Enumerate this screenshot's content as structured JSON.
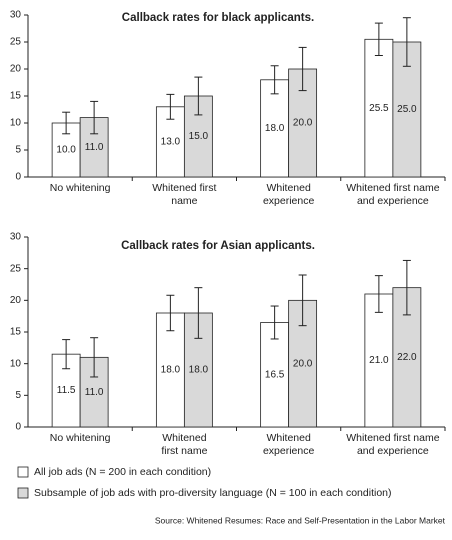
{
  "chart_data": [
    {
      "type": "bar",
      "title": "Callback rates for black applicants.",
      "categories": [
        "No whitening",
        [
          "Whitened first",
          "name"
        ],
        [
          "Whitened",
          "experience"
        ],
        [
          "Whitened first name",
          "and experience"
        ]
      ],
      "series": [
        {
          "color": "#ffffff",
          "values": [
            10,
            13,
            18,
            25.5
          ],
          "value_labels": [
            "10.0",
            "13.0",
            "18.0",
            "25.5"
          ],
          "errors": [
            2,
            2.3,
            2.6,
            3
          ]
        },
        {
          "color": "#d9d9d9",
          "values": [
            11,
            15,
            20,
            25
          ],
          "value_labels": [
            "11.0",
            "15.0",
            "20.0",
            "25.0"
          ],
          "errors": [
            3,
            3.5,
            4,
            4.5
          ]
        }
      ],
      "ylim": [
        0,
        30
      ],
      "yticks": [
        0,
        5,
        10,
        15,
        20,
        25,
        30
      ]
    },
    {
      "type": "bar",
      "title": "Callback rates for Asian applicants.",
      "categories": [
        "No whitening",
        [
          "Whitened",
          "first name"
        ],
        [
          "Whitened",
          "experience"
        ],
        [
          "Whitened first name",
          "and experience"
        ]
      ],
      "series": [
        {
          "name": "All job ads (N = 200 in each condition)",
          "color": "#ffffff",
          "values": [
            11.5,
            18,
            16.5,
            21
          ],
          "value_labels": [
            "11.5",
            "18.0",
            "16.5",
            "21.0"
          ],
          "errors": [
            2.3,
            2.8,
            2.6,
            2.9
          ]
        },
        {
          "name": "Subsample of job ads with pro-diversity language (N = 100 in each condition)",
          "color": "#d9d9d9",
          "values": [
            11,
            18,
            20,
            22
          ],
          "value_labels": [
            "11.0",
            "18.0",
            "20.0",
            "22.0"
          ],
          "errors": [
            3.1,
            4,
            4,
            4.3
          ]
        }
      ],
      "ylim": [
        0,
        30
      ],
      "yticks": [
        0,
        5,
        10,
        15,
        20,
        25,
        30
      ],
      "legend": "bottom"
    }
  ],
  "source": "Source: Whitened Resumes: Race and Self-Presentation in the Labor Market"
}
